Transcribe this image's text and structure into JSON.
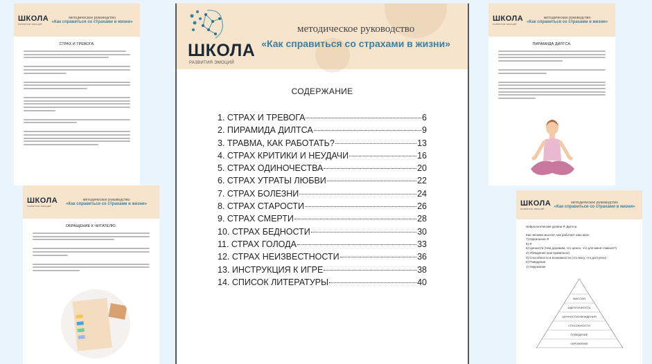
{
  "header": {
    "logo_word": "ШКОЛА",
    "logo_sub": "РАЗВИТИЯ ЭМОЦИЙ",
    "subtitle": "методическое руководство",
    "title": "«Как справиться со страхами в жизни»"
  },
  "colors": {
    "background": "#e9f4fd",
    "header_band": "#f6e4cc",
    "title_blue": "#3a7fa0"
  },
  "pages": {
    "fear_anxiety": {
      "heading": "СТРАХ И ТРЕВОГА."
    },
    "reader_address": {
      "heading": "ОБРАЩЕНИЕ К ЧИТАТЕЛЮ."
    },
    "dilts_pyramid": {
      "heading": "ПИРАМИДА ДИЛТСА."
    },
    "contents": {
      "heading": "СОДЕРЖАНИЕ",
      "items": [
        {
          "title": "1. СТРАХ И ТРЕВОГА",
          "page": "6"
        },
        {
          "title": "2. ПИРАМИДА ДИЛТСА",
          "page": "9"
        },
        {
          "title": "3. ТРАВМА, КАК РАБОТАТЬ?",
          "page": "13"
        },
        {
          "title": "4. СТРАХ КРИТИКИ И НЕУДАЧИ",
          "page": "16"
        },
        {
          "title": "5. СТРАХ ОДИНОЧЕСТВА",
          "page": "20"
        },
        {
          "title": "6. СТРАХ УТРАТЫ ЛЮБВИ",
          "page": "22"
        },
        {
          "title": "7. СТРАХ БОЛЕЗНИ",
          "page": "24"
        },
        {
          "title": "8. СТРАХ СТАРОСТИ",
          "page": "26"
        },
        {
          "title": "9. СТРАХ СМЕРТИ",
          "page": "28"
        },
        {
          "title": "10. СТРАХ БЕДНОСТИ",
          "page": "30"
        },
        {
          "title": "11. СТРАХ ГОЛОДА",
          "page": "33"
        },
        {
          "title": "12. СТРАХ НЕИЗВЕСТНОСТИ",
          "page": "36"
        },
        {
          "title": "13. ИНСТРУКЦИЯ К ИГРЕ",
          "page": "38"
        },
        {
          "title": "14. СПИСОК ЛИТЕРАТУРЫ",
          "page": "40"
        }
      ]
    },
    "levels": {
      "heading": "Нейрологические уровни Р. Дилтса",
      "intro": "Как человек мыслит, как работает наш мозг:",
      "list": [
        "7) Идеальное Я",
        "6) Я",
        "5) Ценности (чем дорожим, что ценно, что для меня главное?)",
        "4) Убеждения (как правильно)",
        "3) Способности и возможности (что могу, что доступно)",
        "2) Поведение",
        "1) Окружение"
      ],
      "pyramid": [
        "МИССИЯ",
        "ИДЕНТИЧНОСТЬ",
        "ЦЕННОСТИ/УБЕЖДЕНИЯ",
        "СПОСОБНОСТИ",
        "ПОВЕДЕНИЕ",
        "ОКРУЖЕНИЕ"
      ]
    }
  }
}
